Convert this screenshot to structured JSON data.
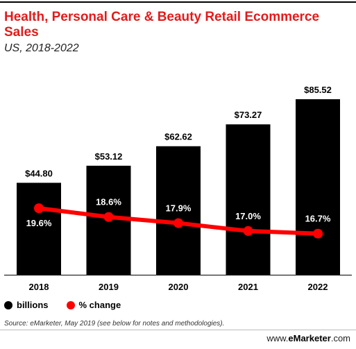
{
  "header": {
    "title": "Health, Personal Care & Beauty Retail Ecommerce Sales",
    "subtitle": "US, 2018-2022"
  },
  "legend": {
    "bars_label": "billions",
    "line_label": "% change"
  },
  "footer": {
    "source": "Source: eMarketer, May 2019 (see below for notes and methodologies).",
    "brand_prefix": "www.",
    "brand_name": "eMarketer",
    "brand_suffix": ".com"
  },
  "colors": {
    "bars": "#000000",
    "line": "#ff0000",
    "title": "#e31b1b"
  },
  "chart_data": {
    "type": "bar",
    "categories": [
      "2018",
      "2019",
      "2020",
      "2021",
      "2022"
    ],
    "series": [
      {
        "name": "billions",
        "type": "bar",
        "values": [
          44.8,
          53.12,
          62.62,
          73.27,
          85.52
        ],
        "labels": [
          "$44.80",
          "$53.12",
          "$62.62",
          "$73.27",
          "$85.52"
        ]
      },
      {
        "name": "% change",
        "type": "line",
        "values": [
          19.6,
          18.6,
          17.9,
          17.0,
          16.7
        ],
        "labels": [
          "19.6%",
          "18.6%",
          "17.9%",
          "17.0%",
          "16.7%"
        ]
      }
    ],
    "ylim": [
      0,
      85.52
    ],
    "line_ylim": [
      12,
      25
    ],
    "grid": false,
    "legend_position": "bottom-left"
  }
}
